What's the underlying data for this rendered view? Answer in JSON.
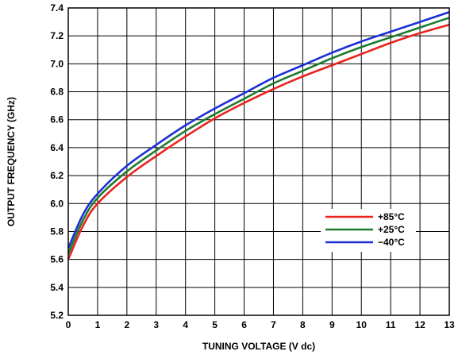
{
  "chart_data": {
    "type": "line",
    "title": "",
    "xlabel": "TUNING VOLTAGE (V dc)",
    "ylabel": "OUTPUT FREQUENCY (GHz)",
    "xlim": [
      0,
      13
    ],
    "ylim": [
      5.2,
      7.4
    ],
    "x_ticks": [
      "0",
      "1",
      "2",
      "3",
      "4",
      "5",
      "6",
      "7",
      "8",
      "9",
      "10",
      "11",
      "12",
      "13"
    ],
    "y_ticks": [
      "5.2",
      "5.4",
      "5.6",
      "5.8",
      "6.0",
      "6.2",
      "6.4",
      "6.6",
      "6.8",
      "7.0",
      "7.2",
      "7.4"
    ],
    "grid": true,
    "legend_position": "right-center",
    "x": [
      0,
      0.5,
      1,
      2,
      3,
      4,
      5,
      6,
      7,
      8,
      9,
      10,
      11,
      12,
      13
    ],
    "series": [
      {
        "name": "+85°C",
        "color": "#e8231e",
        "values": [
          5.6,
          5.84,
          6.0,
          6.19,
          6.34,
          6.48,
          6.61,
          6.72,
          6.82,
          6.91,
          6.99,
          7.07,
          7.15,
          7.22,
          7.28
        ]
      },
      {
        "name": "+25°C",
        "color": "#1e7a2e",
        "values": [
          5.64,
          5.88,
          6.04,
          6.23,
          6.38,
          6.52,
          6.64,
          6.75,
          6.86,
          6.95,
          7.04,
          7.12,
          7.19,
          7.26,
          7.33
        ]
      },
      {
        "name": "−40°C",
        "color": "#1d2fd6",
        "values": [
          5.68,
          5.92,
          6.07,
          6.27,
          6.42,
          6.56,
          6.68,
          6.79,
          6.9,
          6.99,
          7.08,
          7.16,
          7.23,
          7.3,
          7.37
        ]
      }
    ]
  }
}
